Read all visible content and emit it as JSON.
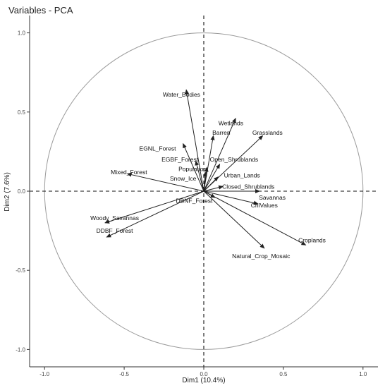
{
  "chart_data": {
    "type": "pca-correlation-circle",
    "title": "Variables - PCA",
    "xlabel": "Dim1 (10.4%)",
    "ylabel": "Dim2 (7.6%)",
    "xlim": [
      -1.1,
      1.1
    ],
    "ylim": [
      -1.05,
      1.1
    ],
    "xticks": [
      -1.0,
      -0.5,
      0.0,
      0.5,
      1.0
    ],
    "yticks": [
      -1.0,
      -0.5,
      0.0,
      0.5,
      1.0
    ],
    "xtick_labels": [
      "-1.0",
      "-0.5",
      "0.0",
      "0.5",
      "1.0"
    ],
    "ytick_labels": [
      "-1.0",
      "-0.5",
      "0.0",
      "0.5",
      "1.0"
    ],
    "circle_radius": 1.0,
    "reference_lines": [
      0,
      0
    ],
    "grid": false,
    "variables": [
      {
        "name": "Water_Bodies",
        "x": -0.11,
        "y": 0.64,
        "label_x": -0.14,
        "label_y": 0.61
      },
      {
        "name": "Wetlands",
        "x": 0.2,
        "y": 0.46,
        "label_x": 0.17,
        "label_y": 0.43
      },
      {
        "name": "Barren",
        "x": 0.06,
        "y": 0.35,
        "label_x": 0.11,
        "label_y": 0.37
      },
      {
        "name": "Grasslands",
        "x": 0.37,
        "y": 0.35,
        "label_x": 0.4,
        "label_y": 0.37
      },
      {
        "name": "EGNL_Forest",
        "x": -0.13,
        "y": 0.3,
        "label_x": -0.29,
        "label_y": 0.27
      },
      {
        "name": "EGBF_Forest",
        "x": -0.05,
        "y": 0.19,
        "label_x": -0.15,
        "label_y": 0.2
      },
      {
        "name": "Open_Shrublands",
        "x": 0.1,
        "y": 0.17,
        "label_x": 0.19,
        "label_y": 0.2
      },
      {
        "name": "Population",
        "x": 0.02,
        "y": 0.15,
        "label_x": -0.07,
        "label_y": 0.14
      },
      {
        "name": "Mixed_Forest",
        "x": -0.48,
        "y": 0.11,
        "label_x": -0.47,
        "label_y": 0.12
      },
      {
        "name": "Snow_Ice",
        "x": 0.01,
        "y": 0.12,
        "label_x": -0.13,
        "label_y": 0.08
      },
      {
        "name": "Urban_Lands",
        "x": 0.09,
        "y": 0.09,
        "label_x": 0.24,
        "label_y": 0.1
      },
      {
        "name": "Closed_Shrublands",
        "x": 0.12,
        "y": 0.03,
        "label_x": 0.28,
        "label_y": 0.03
      },
      {
        "name": "Savannas",
        "x": 0.35,
        "y": 0.0,
        "label_x": 0.43,
        "label_y": -0.04
      },
      {
        "name": "DBNF_Forest",
        "x": 0.07,
        "y": -0.04,
        "label_x": -0.06,
        "label_y": -0.06
      },
      {
        "name": "ChlValues",
        "x": 0.34,
        "y": -0.08,
        "label_x": 0.38,
        "label_y": -0.09
      },
      {
        "name": "Woody_Savannas",
        "x": -0.62,
        "y": -0.2,
        "label_x": -0.56,
        "label_y": -0.17
      },
      {
        "name": "DDBF_Forest",
        "x": -0.61,
        "y": -0.29,
        "label_x": -0.56,
        "label_y": -0.25
      },
      {
        "name": "Croplands",
        "x": 0.64,
        "y": -0.34,
        "label_x": 0.68,
        "label_y": -0.31
      },
      {
        "name": "Natural_Crop_Mosaic",
        "x": 0.38,
        "y": -0.36,
        "label_x": 0.36,
        "label_y": -0.41
      }
    ]
  }
}
